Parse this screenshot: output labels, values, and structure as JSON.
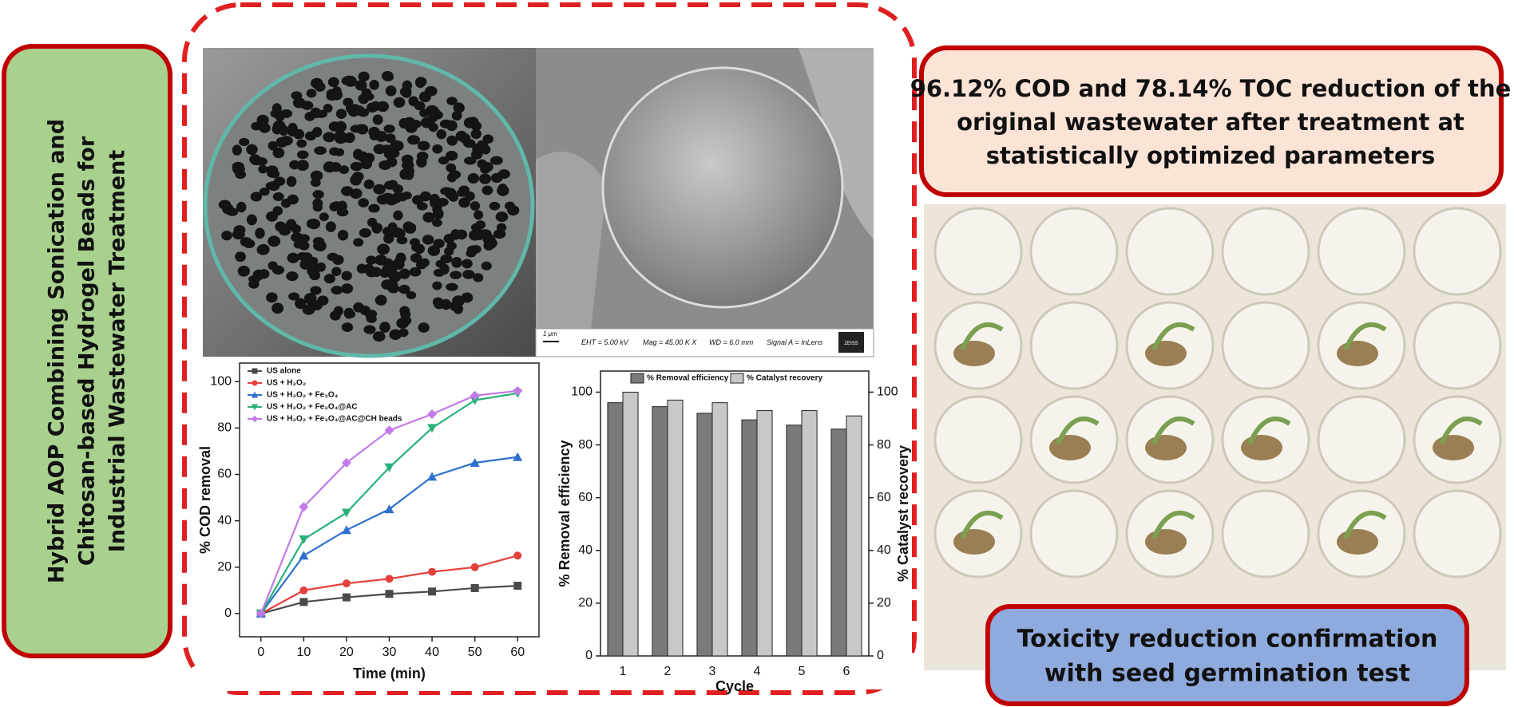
{
  "title_box": {
    "lines": [
      "Hybrid AOP  Combining Sonication and",
      "Chitosan-based Hydrogel Beads for",
      "Industrial Wastewater Treatment"
    ]
  },
  "result_box": {
    "lines": [
      "96.12% COD and 78.14% TOC reduction of the",
      "original wastewater after treatment at",
      "statistically optimized parameters"
    ]
  },
  "toxicity_box": {
    "lines": [
      "Toxicity reduction confirmation",
      "with seed germination test"
    ]
  },
  "sem_info": {
    "scale": "1 μm",
    "eht": "EHT = 5.00 kV",
    "mag": "Mag = 45.00 K X",
    "wd": "WD = 6.0 mm",
    "signal": "Signal A = InLens",
    "brand": "ZEISS"
  },
  "chart_data": [
    {
      "type": "line",
      "xlabel": "Time (min)",
      "ylabel": "% COD removal",
      "x": [
        0,
        10,
        20,
        30,
        40,
        50,
        60
      ],
      "xlim": [
        -5,
        65
      ],
      "xticks": [
        0,
        10,
        20,
        30,
        40,
        50,
        60
      ],
      "ylim": [
        -10,
        108
      ],
      "yticks": [
        0,
        20,
        40,
        60,
        80,
        100
      ],
      "legend": "upper left",
      "series": [
        {
          "name": "US alone",
          "color": "#4a4a4a",
          "marker": "square",
          "values": [
            0,
            5,
            7,
            8.5,
            9.5,
            11,
            12
          ]
        },
        {
          "name": "US + H₂O₂",
          "color": "#e3413b",
          "marker": "circle",
          "values": [
            0,
            10,
            13,
            15,
            18,
            20,
            25
          ]
        },
        {
          "name": "US + H₂O₂ + Fe₃O₄",
          "color": "#2f6fd0",
          "marker": "triangle",
          "values": [
            0,
            25,
            36,
            45,
            59,
            65,
            67.5
          ]
        },
        {
          "name": "US + H₂O₂ + Fe₃O₄@AC",
          "color": "#2bb07a",
          "marker": "triangle-down",
          "values": [
            0,
            32,
            43.5,
            63,
            80,
            92,
            95
          ]
        },
        {
          "name": "US + H₂O₂ + Fe₃O₄@AC@CH beads",
          "color": "#c27ae8",
          "marker": "diamond",
          "values": [
            0,
            46,
            65,
            79,
            86,
            94,
            96
          ]
        }
      ]
    },
    {
      "type": "bar",
      "xlabel": "Cycle",
      "ylabel": "% Removal efficiency",
      "y2label": "% Catalyst recovery",
      "categories": [
        "1",
        "2",
        "3",
        "4",
        "5",
        "6"
      ],
      "ylim": [
        0,
        108
      ],
      "yticks": [
        0,
        20,
        40,
        60,
        80,
        100
      ],
      "y2lim": [
        0,
        108
      ],
      "y2ticks": [
        0,
        20,
        40,
        60,
        80,
        100
      ],
      "legend": "upper center",
      "series": [
        {
          "name": "% Removal efficiency",
          "color": "#7a7a7a",
          "values": [
            96,
            94.5,
            92,
            89.5,
            87.5,
            86
          ]
        },
        {
          "name": "% Catalyst recovery",
          "color": "#c8c8c8",
          "axis": "y2",
          "values": [
            100,
            97,
            96,
            93,
            93,
            91
          ]
        }
      ]
    }
  ]
}
